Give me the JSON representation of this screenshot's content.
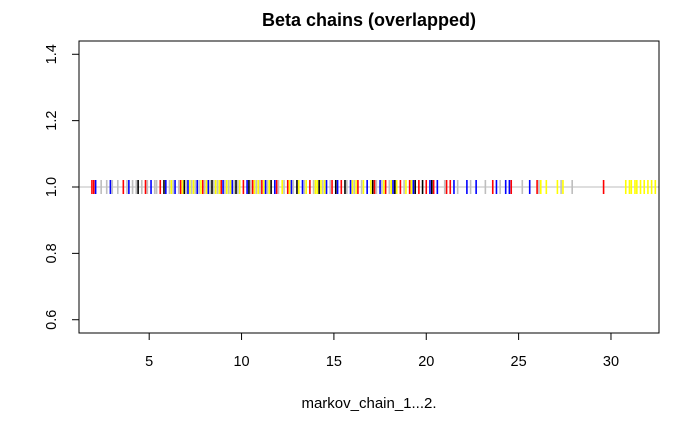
{
  "chart_data": {
    "type": "scatter",
    "title": "Beta chains (overlapped)",
    "xlabel": "markov_chain_1...2.",
    "ylabel": "",
    "xlim": [
      1.2,
      32.6
    ],
    "ylim": [
      0.56,
      1.44
    ],
    "x_ticks": [
      5,
      10,
      15,
      20,
      25,
      30
    ],
    "y_ticks": [
      0.6,
      0.8,
      1.0,
      1.2,
      1.4
    ],
    "x_tick_labels": [
      "5",
      "10",
      "15",
      "20",
      "25",
      "30"
    ],
    "y_tick_labels": [
      "0.6",
      "0.8",
      "1.0",
      "1.2",
      "1.4"
    ],
    "grid": false,
    "legend": "none",
    "y_value": 1.0,
    "series": [
      {
        "color": "#ff0000",
        "points": [
          1.9,
          2.0,
          3.6,
          4.8,
          5.6,
          6.7,
          7.9,
          8.9,
          10.1,
          10.6,
          11.1,
          11.9,
          12.5,
          13.7,
          14.9,
          15.4,
          16.3,
          17.2,
          17.8,
          18.6,
          19.1,
          19.6,
          20.0,
          20.4,
          21.1,
          21.3,
          23.6,
          24.6,
          26.0,
          29.6
        ]
      },
      {
        "color": "#0000ff",
        "points": [
          2.1,
          2.9,
          3.9,
          5.1,
          5.9,
          6.4,
          7.1,
          7.6,
          8.2,
          9.0,
          9.5,
          10.3,
          11.3,
          11.8,
          12.7,
          13.3,
          14.6,
          15.2,
          15.9,
          16.8,
          17.5,
          18.2,
          19.3,
          20.2,
          20.6,
          21.5,
          22.2,
          22.7,
          23.8,
          24.3,
          24.5,
          25.6
        ]
      },
      {
        "color": "#000000",
        "points": [
          4.4,
          5.8,
          6.9,
          8.4,
          9.7,
          10.4,
          11.6,
          13.0,
          14.2,
          15.1,
          15.6,
          17.1,
          18.3,
          19.4,
          19.8,
          20.3
        ]
      },
      {
        "color": "#bebebe",
        "points": [
          2.4,
          2.7,
          3.0,
          3.3,
          3.8,
          4.1,
          4.3,
          4.6,
          4.9,
          5.3,
          5.4,
          6.1,
          6.3,
          6.6,
          7.0,
          7.3,
          7.5,
          7.7,
          8.0,
          8.3,
          8.5,
          8.7,
          9.1,
          9.3,
          9.6,
          9.8,
          10.5,
          10.8,
          11.0,
          11.4,
          12.0,
          12.3,
          12.8,
          13.4,
          13.9,
          14.4,
          14.8,
          15.7,
          16.1,
          16.5,
          17.3,
          17.6,
          18.0,
          18.8,
          21.0,
          21.7,
          22.4,
          23.2,
          24.0,
          25.2,
          26.1,
          27.3,
          27.9
        ]
      },
      {
        "color": "#ffff00",
        "points": [
          6.2,
          6.8,
          7.2,
          7.4,
          7.8,
          8.1,
          8.6,
          8.8,
          9.2,
          9.4,
          9.9,
          10.7,
          10.9,
          11.2,
          11.5,
          12.2,
          12.6,
          13.1,
          13.5,
          14.0,
          14.1,
          14.3,
          14.5,
          16.0,
          16.2,
          16.6,
          17.0,
          17.7,
          18.1,
          18.4,
          18.9,
          19.2,
          26.2,
          26.5,
          27.1,
          27.4,
          30.8,
          31.0,
          31.1,
          31.3,
          31.4,
          31.6,
          31.8,
          32.0,
          32.2,
          32.4
        ]
      }
    ]
  }
}
